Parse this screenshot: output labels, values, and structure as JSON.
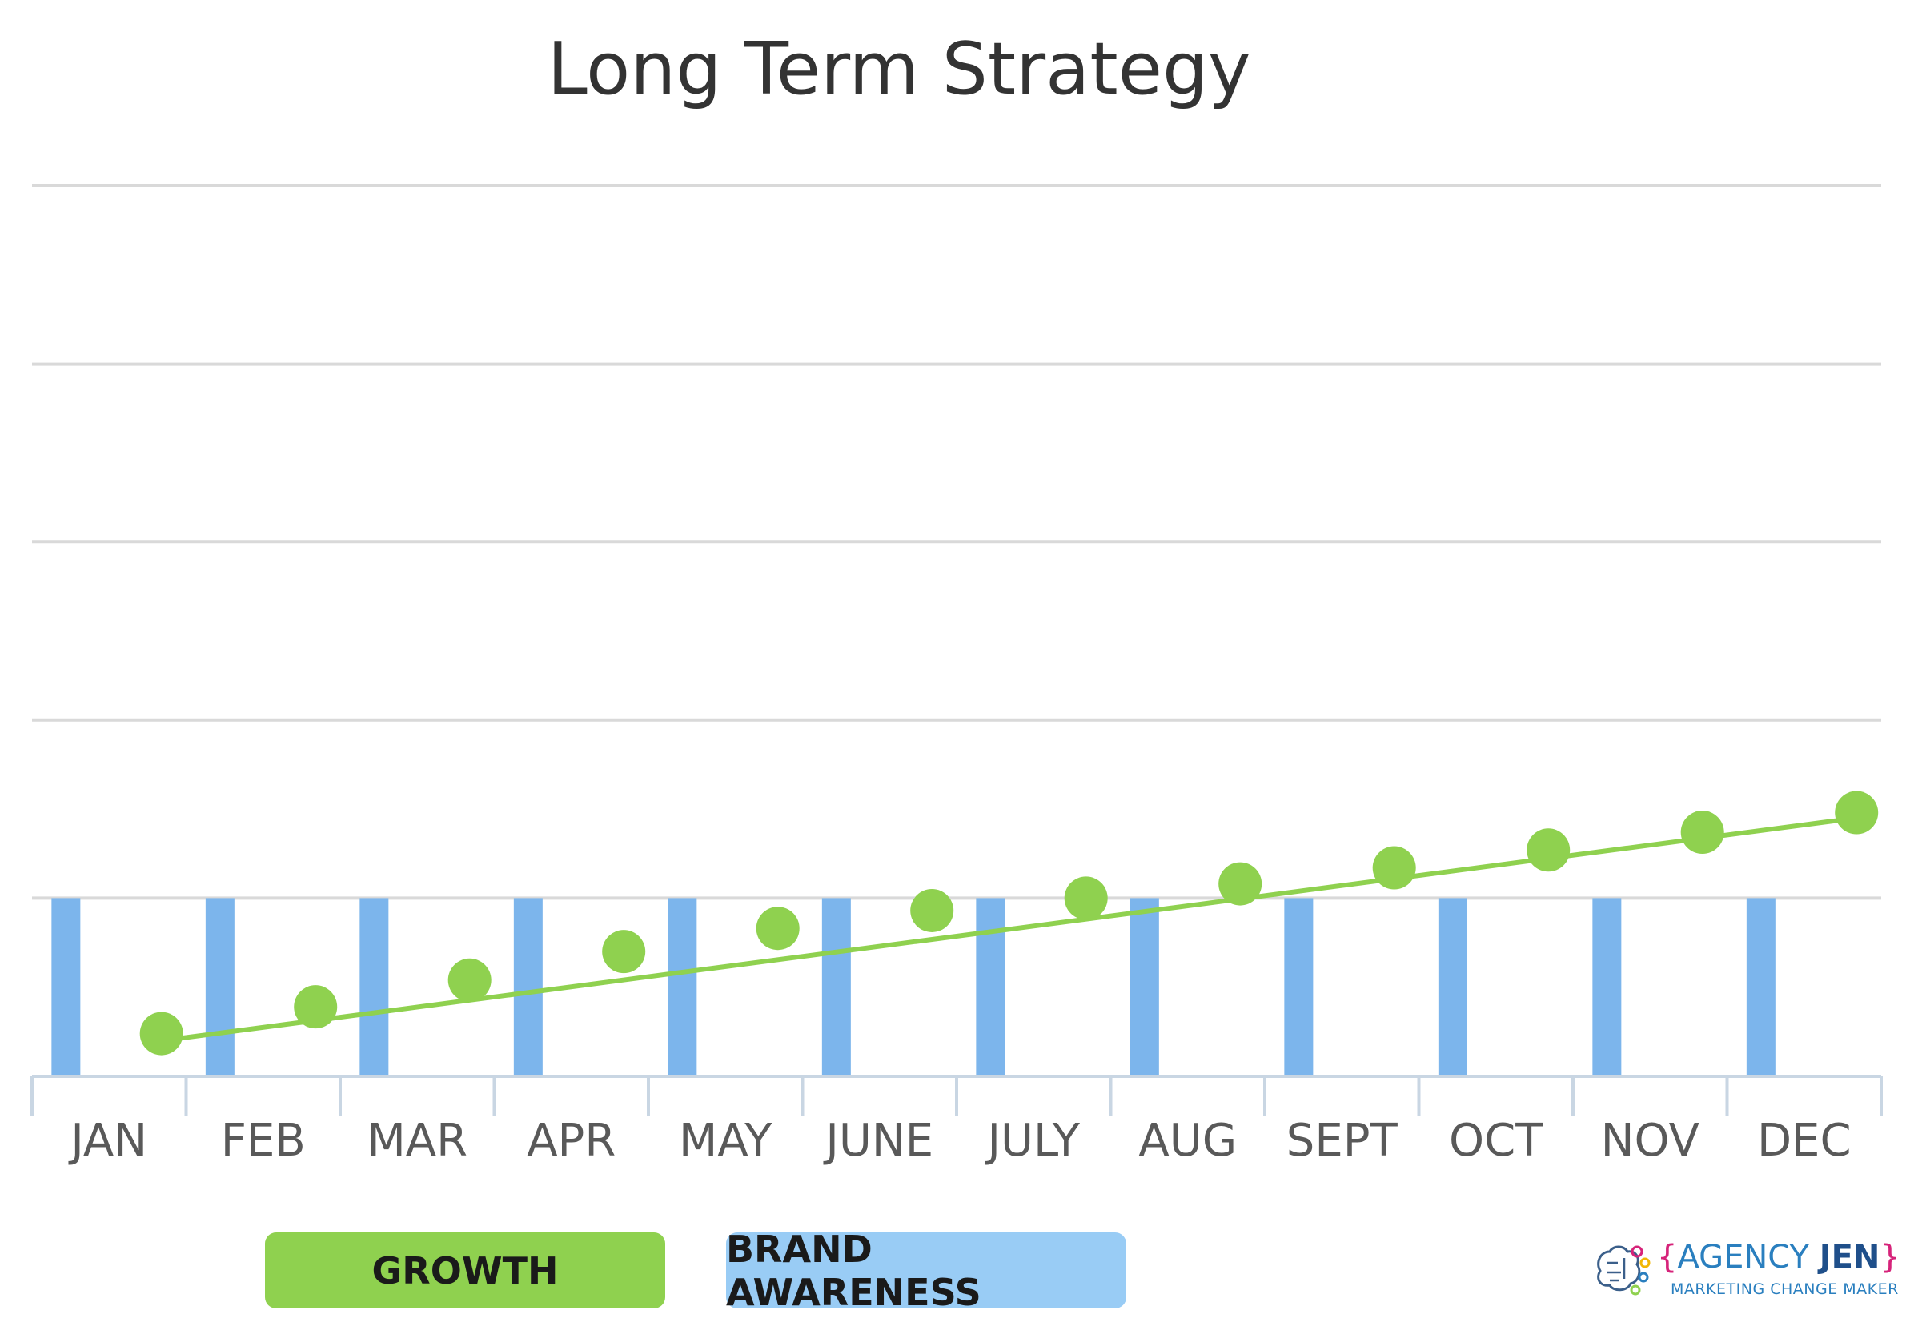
{
  "chart_data": {
    "type": "bar",
    "title": "Long Term Strategy",
    "categories": [
      "JAN",
      "FEB",
      "MAR",
      "APR",
      "MAY",
      "JUNE",
      "JULY",
      "AUG",
      "SEPT",
      "OCT",
      "NOV",
      "DEC"
    ],
    "ylim": [
      0,
      5
    ],
    "grid": true,
    "series": [
      {
        "name": "BRAND AWARENESS",
        "kind": "bar",
        "color": "#7cb5ec",
        "values": [
          1,
          1,
          1,
          1,
          1,
          1,
          1,
          1,
          1,
          1,
          1,
          1
        ]
      },
      {
        "name": "GROWTH",
        "kind": "line-markers",
        "color": "#8fd14f",
        "values": [
          0.24,
          0.39,
          0.54,
          0.7,
          0.83,
          0.93,
          1.0,
          1.08,
          1.17,
          1.27,
          1.37,
          1.48
        ],
        "trendline": [
          0.2,
          1.45
        ]
      }
    ]
  },
  "legend": {
    "growth_label": "GROWTH",
    "growth_color": "#8fd14f",
    "brand_label": "BRAND AWARENESS",
    "brand_color": "#99ccf5"
  },
  "logo": {
    "brace_open": "{",
    "name_part1": "AGENCY ",
    "name_part2": "JEN",
    "brace_close": "}",
    "tagline": "MARKETING CHANGE MAKER"
  }
}
